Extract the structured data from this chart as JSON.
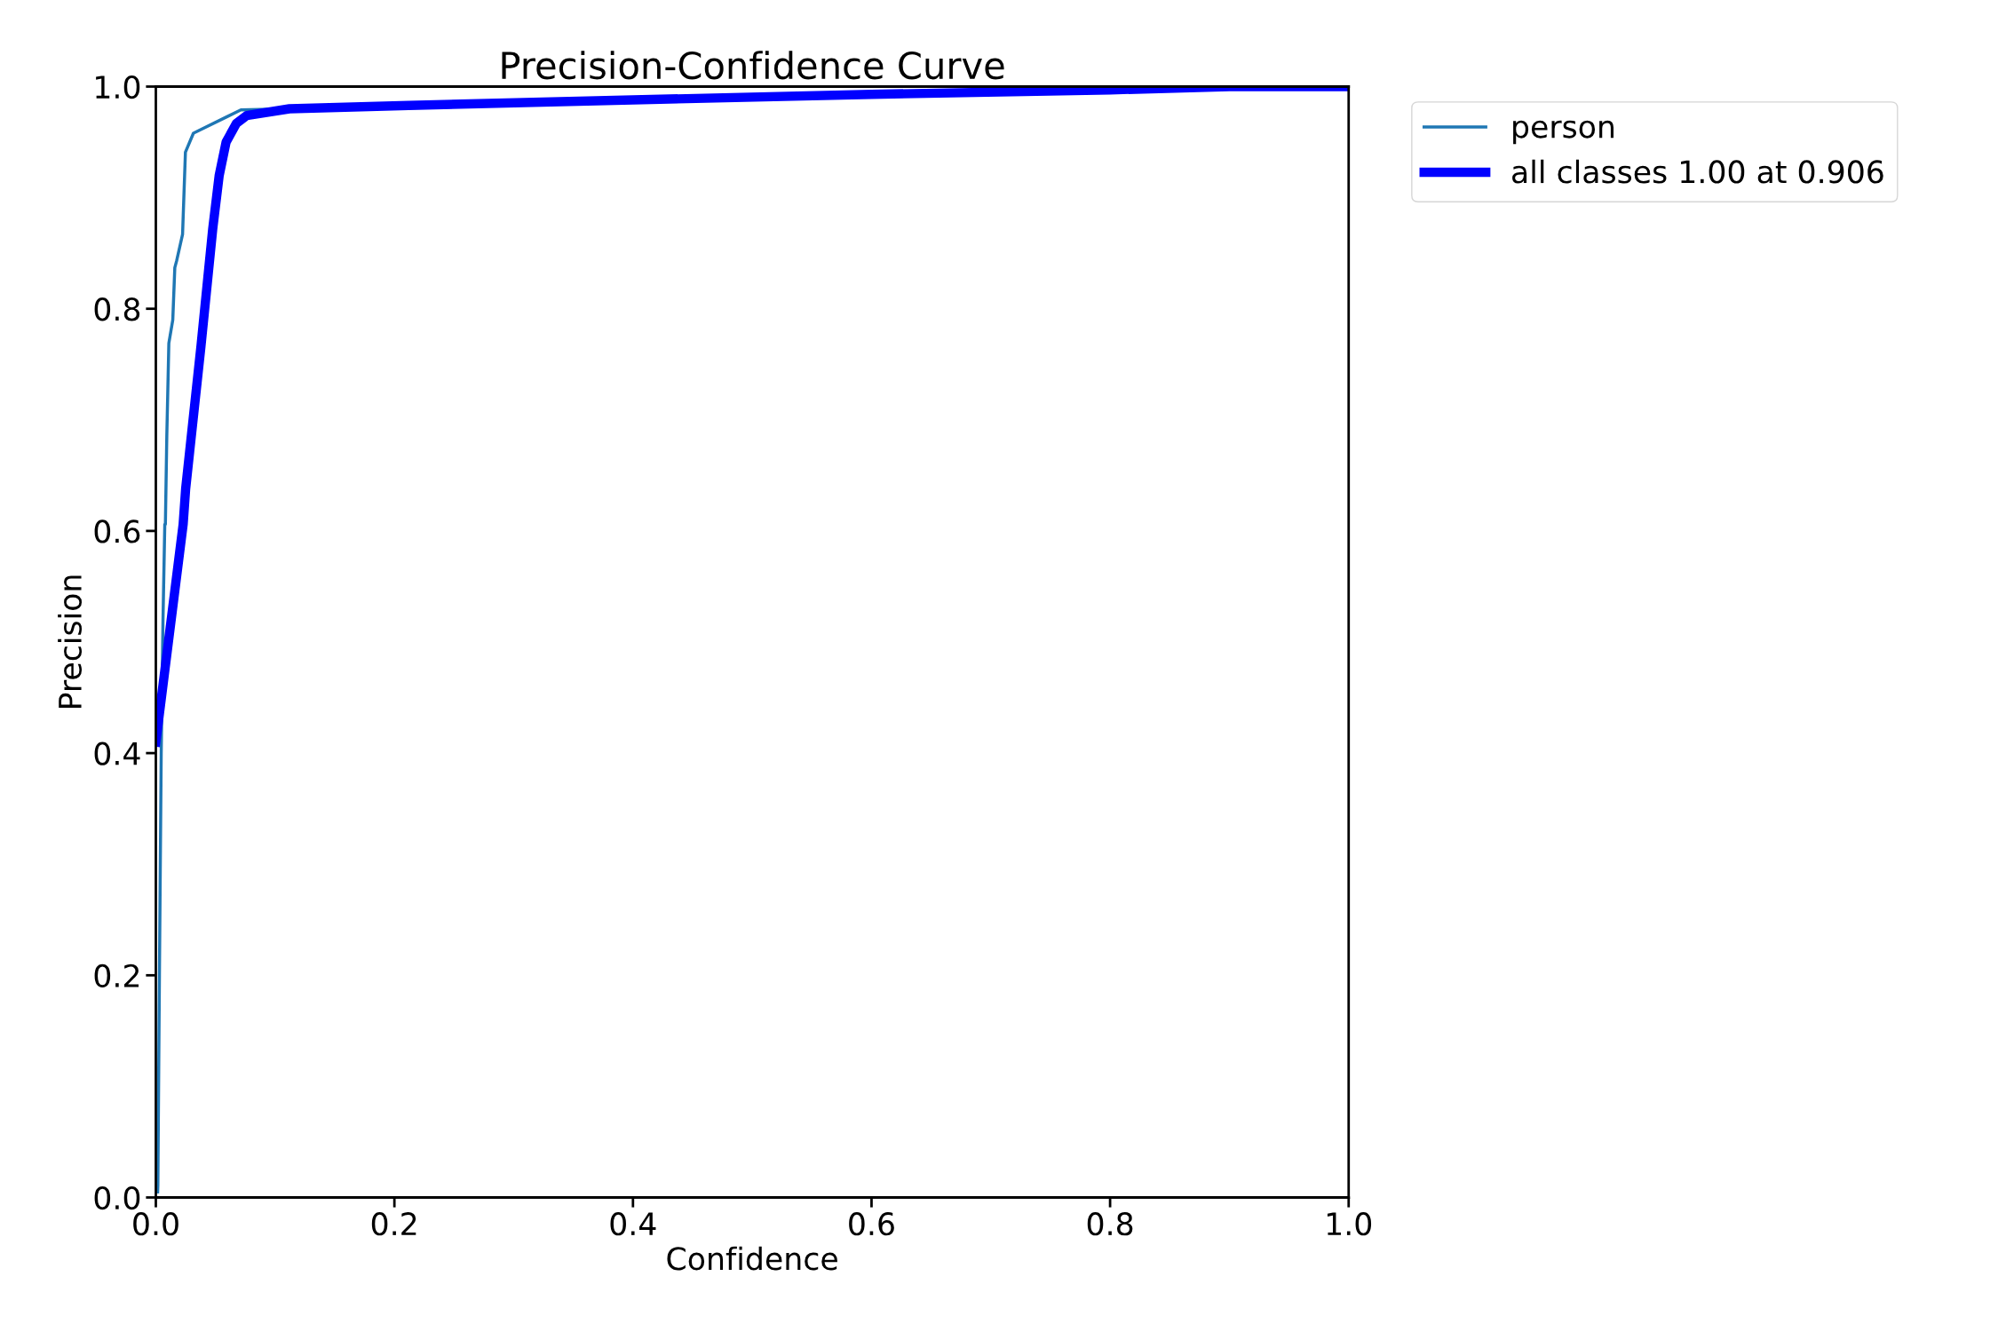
{
  "chart_data": {
    "type": "line",
    "title": "Precision-Confidence Curve",
    "xlabel": "Confidence",
    "ylabel": "Precision",
    "xlim": [
      0,
      1
    ],
    "ylim": [
      0,
      1
    ],
    "xticks": [
      {
        "value": 0,
        "label": "0.0"
      },
      0.2,
      0.4,
      0.6,
      0.8,
      {
        "value": 1,
        "label": "1.0"
      }
    ],
    "yticks": [
      {
        "value": 0,
        "label": "0.0"
      },
      0.2,
      0.4,
      0.6,
      0.8,
      {
        "value": 1,
        "label": "1.0"
      }
    ],
    "grid": false,
    "legend": "top right",
    "marker": "none",
    "line_style": "solid",
    "series": [
      {
        "name": "person",
        "color": "#1f77b4",
        "x": [
          0.0015,
          0.0017,
          0.003,
          0.0045,
          0.006,
          0.0075,
          0.008,
          0.0092,
          0.0109,
          0.0142,
          0.0159,
          0.0174,
          0.0224,
          0.0248,
          0.0315,
          0.0713,
          0.112,
          0.212
        ],
        "values": [
          0.005,
          0.011,
          0.2,
          0.4,
          0.52,
          0.606,
          0.606,
          0.686,
          0.769,
          0.79,
          0.837,
          0.843,
          0.867,
          0.941,
          0.958,
          0.979,
          0.98,
          0.983
        ]
      },
      {
        "name": "all classes 1.00 at 0.906",
        "color": "#0000ff",
        "x": [
          0.0,
          0.0229,
          0.025,
          0.0378,
          0.0477,
          0.0531,
          0.0589,
          0.0676,
          0.0762,
          0.112,
          0.212,
          0.4,
          0.6,
          0.8,
          0.9,
          1.0
        ],
        "values": [
          0.41,
          0.606,
          0.638,
          0.766,
          0.872,
          0.92,
          0.95,
          0.967,
          0.974,
          0.98,
          0.983,
          0.988,
          0.993,
          0.997,
          1.0,
          1.0
        ]
      }
    ]
  }
}
